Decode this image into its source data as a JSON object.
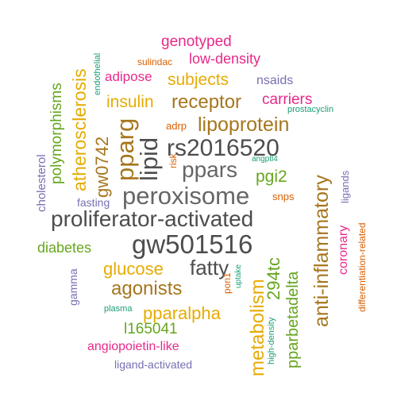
{
  "palette": {
    "green": "#66A61E",
    "orange": "#D95F02",
    "gold": "#E6AB02",
    "brown": "#A6761D",
    "magenta": "#E7298A",
    "purple": "#7570B3",
    "teal": "#1B9E77",
    "gray": "#666666",
    "darkgray": "#4D4D4D"
  },
  "words": [
    {
      "text": "proliferator-activated",
      "color": "#4D4D4D"
    },
    {
      "text": "gw501516",
      "color": "#4D4D4D"
    },
    {
      "text": "peroxisome",
      "color": "#666666"
    },
    {
      "text": "rs2016520",
      "color": "#4D4D4D"
    },
    {
      "text": "ppars",
      "color": "#666666"
    },
    {
      "text": "lipid",
      "color": "#4D4D4D"
    },
    {
      "text": "pparg",
      "color": "#A6761D"
    },
    {
      "text": "lipoprotein",
      "color": "#A6761D"
    },
    {
      "text": "receptor",
      "color": "#A6761D"
    },
    {
      "text": "fatty",
      "color": "#4D4D4D"
    },
    {
      "text": "agonists",
      "color": "#A6761D"
    },
    {
      "text": "anti-inflammatory",
      "color": "#A6761D"
    },
    {
      "text": "atherosclerosis",
      "color": "#E6AB02"
    },
    {
      "text": "gw0742",
      "color": "#A6761D"
    },
    {
      "text": "metabolism",
      "color": "#E6AB02"
    },
    {
      "text": "glucose",
      "color": "#E6AB02"
    },
    {
      "text": "insulin",
      "color": "#E6AB02"
    },
    {
      "text": "subjects",
      "color": "#E6AB02"
    },
    {
      "text": "diabetes",
      "color": "#66A61E"
    },
    {
      "text": "pparalpha",
      "color": "#E6AB02"
    },
    {
      "text": "pparbetadelta",
      "color": "#66A61E"
    },
    {
      "text": "294tc",
      "color": "#66A61E"
    },
    {
      "text": "polymorphisms",
      "color": "#66A61E"
    },
    {
      "text": "pgi2",
      "color": "#66A61E"
    },
    {
      "text": "l165041",
      "color": "#66A61E"
    },
    {
      "text": "carriers",
      "color": "#E7298A"
    },
    {
      "text": "genotyped",
      "color": "#E7298A"
    },
    {
      "text": "low-density",
      "color": "#E7298A"
    },
    {
      "text": "adipose",
      "color": "#E7298A"
    },
    {
      "text": "coronary",
      "color": "#E7298A"
    },
    {
      "text": "angiopoietin-like",
      "color": "#E7298A"
    },
    {
      "text": "cholesterol",
      "color": "#7570B3"
    },
    {
      "text": "nsaids",
      "color": "#7570B3"
    },
    {
      "text": "fasting",
      "color": "#7570B3"
    },
    {
      "text": "gamma",
      "color": "#7570B3"
    },
    {
      "text": "ligands",
      "color": "#7570B3"
    },
    {
      "text": "ligand-activated",
      "color": "#7570B3"
    },
    {
      "text": "sulindac",
      "color": "#D95F02"
    },
    {
      "text": "adrp",
      "color": "#D95F02"
    },
    {
      "text": "risk",
      "color": "#D95F02"
    },
    {
      "text": "snps",
      "color": "#D95F02"
    },
    {
      "text": "pon1",
      "color": "#D95F02"
    },
    {
      "text": "differentiation-related",
      "color": "#D95F02"
    },
    {
      "text": "endothelial",
      "color": "#1B9E77"
    },
    {
      "text": "prostacyclin",
      "color": "#1B9E77"
    },
    {
      "text": "angptl4",
      "color": "#1B9E77"
    },
    {
      "text": "uptake",
      "color": "#1B9E77"
    },
    {
      "text": "plasma",
      "color": "#1B9E77"
    },
    {
      "text": "high-density",
      "color": "#1B9E77"
    }
  ]
}
